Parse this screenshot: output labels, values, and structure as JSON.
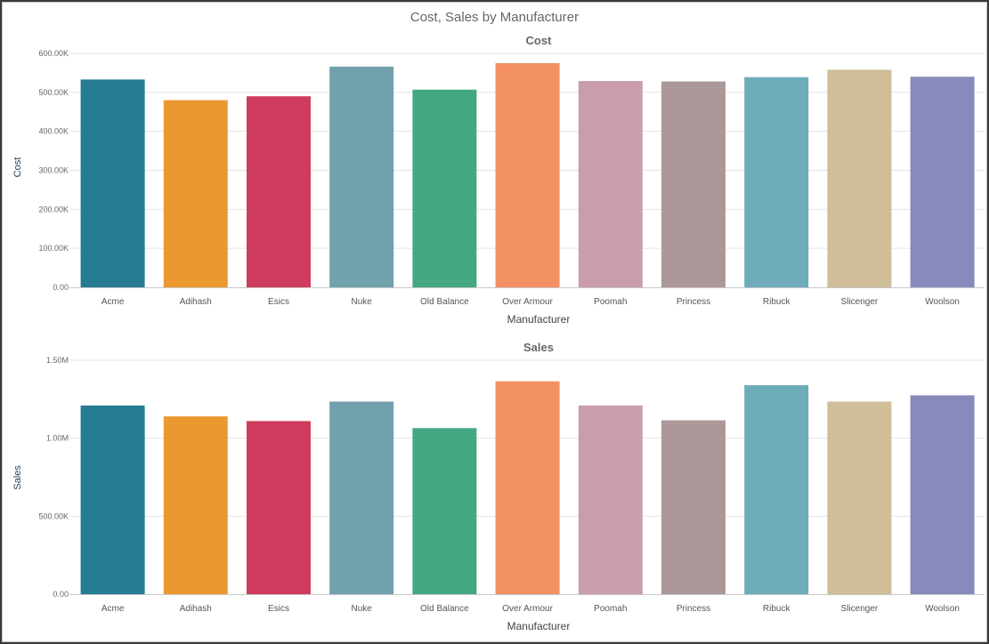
{
  "main_title": "Cost, Sales by Manufacturer",
  "chart_data": [
    {
      "type": "bar",
      "title": "Cost",
      "xlabel": "Manufacturer",
      "ylabel": "Cost",
      "categories": [
        "Acme",
        "Adihash",
        "Esics",
        "Nuke",
        "Old Balance",
        "Over Armour",
        "Poomah",
        "Princess",
        "Ribuck",
        "Slicenger",
        "Woolson"
      ],
      "values": [
        533000,
        480000,
        490000,
        566000,
        507000,
        575000,
        529000,
        528000,
        539000,
        558000,
        540000
      ],
      "ylim": [
        0,
        600000
      ],
      "yticks": [
        0,
        100000,
        200000,
        300000,
        400000,
        500000,
        600000
      ],
      "ytick_labels": [
        "0.00",
        "100.00K",
        "200.00K",
        "300.00K",
        "400.00K",
        "500.00K",
        "600.00K"
      ],
      "grid": true
    },
    {
      "type": "bar",
      "title": "Sales",
      "xlabel": "Manufacturer",
      "ylabel": "Sales",
      "categories": [
        "Acme",
        "Adihash",
        "Esics",
        "Nuke",
        "Old Balance",
        "Over Armour",
        "Poomah",
        "Princess",
        "Ribuck",
        "Slicenger",
        "Woolson"
      ],
      "values": [
        1210000,
        1140000,
        1110000,
        1235000,
        1065000,
        1365000,
        1210000,
        1115000,
        1340000,
        1235000,
        1275000
      ],
      "ylim": [
        0,
        1500000
      ],
      "yticks": [
        0,
        500000,
        1000000,
        1500000
      ],
      "ytick_labels": [
        "0.00",
        "500.00K",
        "1.00M",
        "1.50M"
      ],
      "grid": true
    }
  ],
  "colors": [
    "#267c93",
    "#ec9831",
    "#cf3c5d",
    "#71a1ac",
    "#43a882",
    "#f49163",
    "#c99cae",
    "#ac9898",
    "#6eacba",
    "#cfbe98",
    "#888abb"
  ]
}
